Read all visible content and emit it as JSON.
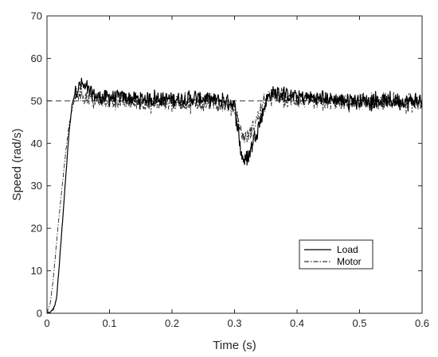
{
  "chart_data": {
    "type": "line",
    "title": "",
    "xlabel": "Time (s)",
    "ylabel": "Speed (rad/s)",
    "xlim": [
      0,
      0.6
    ],
    "ylim": [
      0,
      70
    ],
    "xticks": [
      0,
      0.1,
      0.2,
      0.3,
      0.4,
      0.5,
      0.6
    ],
    "xtick_labels": [
      "0",
      "0.1",
      "0.2",
      "0.3",
      "0.4",
      "0.5",
      "0.6"
    ],
    "yticks": [
      0,
      10,
      20,
      30,
      40,
      50,
      60,
      70
    ],
    "ytick_labels": [
      "0",
      "10",
      "20",
      "30",
      "40",
      "50",
      "60",
      "70"
    ],
    "grid": false,
    "legend_position": "bottom-right",
    "reference_line": {
      "y": 50,
      "style": "dashed"
    },
    "series": [
      {
        "name": "Load",
        "style": "solid",
        "x": [
          0,
          0.005,
          0.01,
          0.015,
          0.02,
          0.025,
          0.03,
          0.035,
          0.04,
          0.045,
          0.05,
          0.055,
          0.06,
          0.08,
          0.1,
          0.15,
          0.2,
          0.25,
          0.29,
          0.3,
          0.305,
          0.31,
          0.315,
          0.32,
          0.325,
          0.33,
          0.335,
          0.34,
          0.345,
          0.35,
          0.36,
          0.4,
          0.45,
          0.5,
          0.55,
          0.6
        ],
        "y": [
          0,
          0,
          1,
          3,
          12,
          22,
          32,
          42,
          49,
          52,
          53,
          54,
          53,
          51,
          51,
          50.5,
          50.5,
          50.5,
          50,
          49,
          44,
          38,
          36,
          36,
          38,
          41,
          43,
          45,
          47,
          50,
          52,
          51,
          50.5,
          50,
          50,
          50
        ],
        "noise_amplitude": 2
      },
      {
        "name": "Motor",
        "style": "dashdot",
        "x": [
          0,
          0.005,
          0.01,
          0.015,
          0.02,
          0.025,
          0.03,
          0.035,
          0.04,
          0.045,
          0.05,
          0.055,
          0.06,
          0.08,
          0.1,
          0.15,
          0.2,
          0.25,
          0.29,
          0.3,
          0.305,
          0.31,
          0.315,
          0.32,
          0.325,
          0.33,
          0.335,
          0.34,
          0.345,
          0.35,
          0.36,
          0.4,
          0.45,
          0.5,
          0.55,
          0.6
        ],
        "y": [
          0,
          2,
          8,
          16,
          24,
          31,
          38,
          44,
          48,
          51,
          52,
          52,
          51,
          50,
          50,
          49.5,
          49.5,
          49.5,
          49,
          48.5,
          46,
          43,
          41.5,
          41.5,
          42.5,
          44,
          45.5,
          47,
          48.5,
          50,
          51,
          50,
          49.5,
          49.5,
          49.5,
          49.5
        ],
        "noise_amplitude": 2
      }
    ]
  }
}
